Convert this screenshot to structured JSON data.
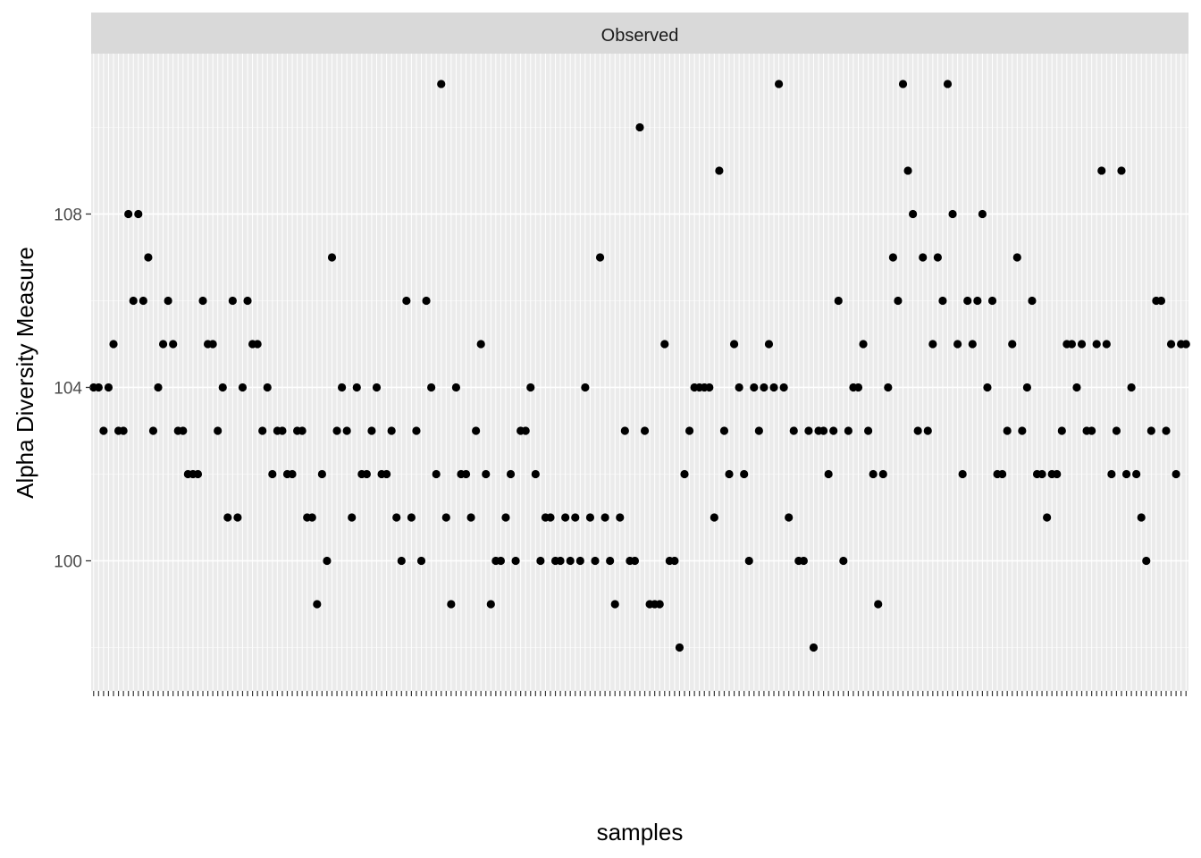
{
  "chart_data": {
    "type": "scatter",
    "facet_label": "Observed",
    "xlabel": "samples",
    "ylabel": "Alpha Diversity Measure",
    "ylim": [
      97.0,
      111.7
    ],
    "y_ticks": [
      100,
      104,
      108
    ],
    "grid": true,
    "legend": "none",
    "colors": {
      "panel": "#ebebeb",
      "strip": "#d9d9d9",
      "grid_major": "#ffffff",
      "grid_minor": "#f5f5f5",
      "point": "#000000",
      "tick": "#333333"
    },
    "values": [
      104,
      104,
      103,
      104,
      105,
      103,
      103,
      108,
      106,
      108,
      106,
      107,
      103,
      104,
      105,
      106,
      105,
      103,
      103,
      102,
      102,
      102,
      106,
      105,
      105,
      103,
      104,
      101,
      106,
      101,
      104,
      106,
      105,
      105,
      103,
      104,
      102,
      103,
      103,
      102,
      102,
      103,
      103,
      101,
      101,
      99,
      102,
      100,
      107,
      103,
      104,
      103,
      101,
      104,
      102,
      102,
      103,
      104,
      102,
      102,
      103,
      101,
      100,
      106,
      101,
      103,
      100,
      106,
      104,
      102,
      111,
      101,
      99,
      104,
      102,
      102,
      101,
      103,
      105,
      102,
      99,
      100,
      100,
      101,
      102,
      100,
      103,
      103,
      104,
      102,
      100,
      101,
      101,
      100,
      100,
      101,
      100,
      101,
      100,
      104,
      101,
      100,
      107,
      101,
      100,
      99,
      101,
      103,
      100,
      100,
      110,
      103,
      99,
      99,
      99,
      105,
      100,
      100,
      98,
      102,
      103,
      104,
      104,
      104,
      104,
      101,
      109,
      103,
      102,
      105,
      104,
      102,
      100,
      104,
      103,
      104,
      105,
      104,
      111,
      104,
      101,
      103,
      100,
      100,
      103,
      98,
      103,
      103,
      102,
      103,
      106,
      100,
      103,
      104,
      104,
      105,
      103,
      102,
      99,
      102,
      104,
      107,
      106,
      111,
      109,
      108,
      103,
      107,
      103,
      105,
      107,
      106,
      111,
      108,
      105,
      102,
      106,
      105,
      106,
      108,
      104,
      106,
      102,
      102,
      103,
      105,
      107,
      103,
      104,
      106,
      102,
      102,
      101,
      102,
      102,
      103,
      105,
      105,
      104,
      105,
      103,
      103,
      105,
      109,
      105,
      102,
      103,
      109,
      102,
      104,
      102,
      101,
      100,
      103,
      106,
      106,
      103,
      105,
      102,
      105,
      105
    ]
  }
}
